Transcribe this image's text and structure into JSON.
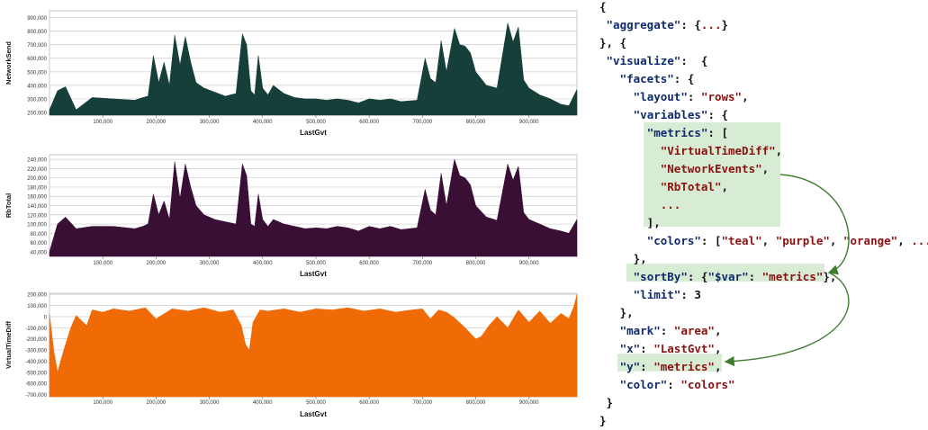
{
  "chart_data": [
    {
      "type": "area",
      "ylabel": "NetworkSend",
      "xlabel": "LastGvt",
      "color": "#163f3a",
      "ylim": [
        180000,
        950000
      ],
      "yticks": [
        "200,000",
        "300,000",
        "400,000",
        "500,000",
        "600,000",
        "700,000",
        "800,000",
        "900,000"
      ],
      "ytick_values": [
        200000,
        300000,
        400000,
        500000,
        600000,
        700000,
        800000,
        900000
      ],
      "xticks": [
        "100,000",
        "200,000",
        "300,000",
        "400,000",
        "500,000",
        "600,000",
        "700,000",
        "800,000",
        "900,000"
      ],
      "xtick_values": [
        100000,
        200000,
        300000,
        400000,
        500000,
        600000,
        700000,
        800000,
        900000
      ],
      "xlim": [
        0,
        990000
      ],
      "x": [
        0,
        15000,
        30000,
        50000,
        80000,
        120000,
        160000,
        175000,
        185000,
        195000,
        205000,
        215000,
        225000,
        235000,
        245000,
        255000,
        265000,
        275000,
        290000,
        310000,
        330000,
        350000,
        362000,
        370000,
        378000,
        385000,
        392000,
        400000,
        410000,
        420000,
        440000,
        460000,
        480000,
        500000,
        520000,
        540000,
        560000,
        580000,
        600000,
        620000,
        640000,
        660000,
        690000,
        705000,
        715000,
        725000,
        735000,
        745000,
        760000,
        770000,
        780000,
        790000,
        800000,
        820000,
        840000,
        860000,
        870000,
        880000,
        890000,
        900000,
        920000,
        940000,
        960000,
        975000,
        990000
      ],
      "y": [
        220000,
        360000,
        390000,
        220000,
        310000,
        300000,
        290000,
        310000,
        320000,
        620000,
        420000,
        570000,
        400000,
        770000,
        550000,
        760000,
        570000,
        420000,
        380000,
        350000,
        320000,
        340000,
        780000,
        700000,
        360000,
        330000,
        620000,
        380000,
        330000,
        400000,
        340000,
        310000,
        300000,
        300000,
        290000,
        300000,
        290000,
        270000,
        300000,
        290000,
        300000,
        280000,
        290000,
        600000,
        450000,
        420000,
        730000,
        500000,
        820000,
        700000,
        690000,
        640000,
        500000,
        400000,
        380000,
        860000,
        720000,
        830000,
        440000,
        380000,
        330000,
        300000,
        260000,
        250000,
        370000
      ]
    },
    {
      "type": "area",
      "ylabel": "RbTotal",
      "xlabel": "LastGvt",
      "color": "#3a0f35",
      "ylim": [
        30000,
        250000
      ],
      "yticks": [
        "40,000",
        "60,000",
        "80,000",
        "100,000",
        "120,000",
        "140,000",
        "160,000",
        "180,000",
        "200,000",
        "220,000",
        "240,000"
      ],
      "ytick_values": [
        40000,
        60000,
        80000,
        100000,
        120000,
        140000,
        160000,
        180000,
        200000,
        220000,
        240000
      ],
      "xticks": [
        "100,000",
        "200,000",
        "300,000",
        "400,000",
        "500,000",
        "600,000",
        "700,000",
        "800,000",
        "900,000"
      ],
      "xtick_values": [
        100000,
        200000,
        300000,
        400000,
        500000,
        600000,
        700000,
        800000,
        900000
      ],
      "xlim": [
        0,
        990000
      ],
      "x": [
        0,
        15000,
        30000,
        50000,
        80000,
        120000,
        160000,
        175000,
        185000,
        195000,
        205000,
        215000,
        225000,
        235000,
        245000,
        255000,
        265000,
        275000,
        290000,
        310000,
        330000,
        350000,
        362000,
        370000,
        378000,
        385000,
        392000,
        400000,
        410000,
        420000,
        440000,
        460000,
        480000,
        500000,
        520000,
        540000,
        560000,
        580000,
        600000,
        620000,
        640000,
        660000,
        690000,
        705000,
        715000,
        725000,
        735000,
        745000,
        760000,
        770000,
        780000,
        790000,
        800000,
        820000,
        840000,
        860000,
        870000,
        880000,
        890000,
        900000,
        920000,
        940000,
        960000,
        975000,
        990000
      ],
      "y": [
        40000,
        100000,
        115000,
        90000,
        95000,
        95000,
        90000,
        95000,
        100000,
        165000,
        120000,
        150000,
        110000,
        235000,
        155000,
        230000,
        180000,
        140000,
        120000,
        110000,
        105000,
        100000,
        230000,
        205000,
        100000,
        95000,
        165000,
        110000,
        95000,
        110000,
        100000,
        95000,
        90000,
        92000,
        90000,
        95000,
        92000,
        85000,
        95000,
        90000,
        95000,
        88000,
        92000,
        175000,
        130000,
        120000,
        210000,
        140000,
        240000,
        205000,
        200000,
        185000,
        140000,
        115000,
        108000,
        230000,
        195000,
        225000,
        125000,
        110000,
        100000,
        90000,
        85000,
        80000,
        110000
      ]
    },
    {
      "type": "area",
      "ylabel": "VirtualTimeDiff",
      "xlabel": "LastGvt",
      "color": "#f06a06",
      "ylim": [
        -720000,
        210000
      ],
      "yticks": [
        "-700,000",
        "-600,000",
        "-500,000",
        "-400,000",
        "-300,000",
        "-200,000",
        "-100,000",
        "0",
        "100,000",
        "200,000"
      ],
      "ytick_values": [
        -700000,
        -600000,
        -500000,
        -400000,
        -300000,
        -200000,
        -100000,
        0,
        100000,
        200000
      ],
      "xticks": [
        "100,000",
        "200,000",
        "300,000",
        "400,000",
        "500,000",
        "600,000",
        "700,000",
        "800,000",
        "900,000"
      ],
      "xtick_values": [
        100000,
        200000,
        300000,
        400000,
        500000,
        600000,
        700000,
        800000,
        900000
      ],
      "xlim": [
        0,
        990000
      ],
      "x": [
        0,
        8000,
        15000,
        22000,
        30000,
        40000,
        50000,
        70000,
        80000,
        100000,
        120000,
        150000,
        180000,
        200000,
        230000,
        260000,
        290000,
        320000,
        345000,
        360000,
        368000,
        375000,
        382000,
        395000,
        410000,
        440000,
        470000,
        500000,
        530000,
        560000,
        590000,
        620000,
        650000,
        680000,
        700000,
        715000,
        730000,
        745000,
        760000,
        780000,
        800000,
        810000,
        825000,
        840000,
        860000,
        880000,
        900000,
        920000,
        940000,
        960000,
        975000,
        985000,
        990000
      ],
      "y": [
        20000,
        -300000,
        -500000,
        -380000,
        -250000,
        -100000,
        10000,
        -80000,
        60000,
        40000,
        70000,
        50000,
        80000,
        -20000,
        70000,
        50000,
        80000,
        40000,
        60000,
        -80000,
        -250000,
        -300000,
        -50000,
        60000,
        50000,
        70000,
        40000,
        70000,
        60000,
        80000,
        50000,
        70000,
        40000,
        60000,
        70000,
        -20000,
        60000,
        40000,
        -10000,
        -100000,
        -200000,
        -180000,
        -80000,
        0,
        -100000,
        60000,
        -50000,
        50000,
        -60000,
        30000,
        -20000,
        100000,
        200000
      ]
    }
  ],
  "code": {
    "lines": [
      [
        [
          "n",
          "{"
        ]
      ],
      [
        [
          "n",
          " "
        ],
        [
          "k",
          "\"aggregate\""
        ],
        [
          "n",
          ": {"
        ],
        [
          "s",
          "..."
        ],
        [
          "n",
          "}"
        ]
      ],
      [
        [
          "n",
          "}, {"
        ]
      ],
      [
        [
          "n",
          " "
        ],
        [
          "k",
          "\"visualize\""
        ],
        [
          "n",
          ":  {"
        ]
      ],
      [
        [
          "n",
          "   "
        ],
        [
          "k",
          "\"facets\""
        ],
        [
          "n",
          ": {"
        ]
      ],
      [
        [
          "n",
          "     "
        ],
        [
          "k",
          "\"layout\""
        ],
        [
          "n",
          ": "
        ],
        [
          "s",
          "\"rows\""
        ],
        [
          "n",
          ","
        ]
      ],
      [
        [
          "n",
          "     "
        ],
        [
          "k",
          "\"variables\""
        ],
        [
          "n",
          ": {"
        ]
      ],
      [
        [
          "n",
          "       "
        ],
        [
          "k",
          "\"metrics\""
        ],
        [
          "n",
          ": ["
        ]
      ],
      [
        [
          "n",
          "         "
        ],
        [
          "s",
          "\"VirtualTimeDiff\""
        ],
        [
          "n",
          ","
        ]
      ],
      [
        [
          "n",
          "         "
        ],
        [
          "s",
          "\"NetworkEvents\""
        ],
        [
          "n",
          ","
        ]
      ],
      [
        [
          "n",
          "         "
        ],
        [
          "s",
          "\"RbTotal\""
        ],
        [
          "n",
          ","
        ]
      ],
      [
        [
          "n",
          "         "
        ],
        [
          "s",
          "..."
        ]
      ],
      [
        [
          "n",
          "       ],"
        ]
      ],
      [
        [
          "n",
          "       "
        ],
        [
          "k",
          "\"colors\""
        ],
        [
          "n",
          ": ["
        ],
        [
          "s",
          "\"teal\""
        ],
        [
          "n",
          ", "
        ],
        [
          "s",
          "\"purple\""
        ],
        [
          "n",
          ", "
        ],
        [
          "s",
          "\"orange\""
        ],
        [
          "n",
          ", "
        ],
        [
          "s",
          "..."
        ],
        [
          "n",
          "]"
        ]
      ],
      [
        [
          "n",
          "     },"
        ]
      ],
      [
        [
          "n",
          "     "
        ],
        [
          "k",
          "\"sortBy\""
        ],
        [
          "n",
          ": {"
        ],
        [
          "k",
          "\"$var\""
        ],
        [
          "n",
          ": "
        ],
        [
          "s",
          "\"metrics\""
        ],
        [
          "n",
          "},"
        ]
      ],
      [
        [
          "n",
          "     "
        ],
        [
          "k",
          "\"limit\""
        ],
        [
          "n",
          ": 3"
        ]
      ],
      [
        [
          "n",
          "   },"
        ]
      ],
      [
        [
          "n",
          "   "
        ],
        [
          "k",
          "\"mark\""
        ],
        [
          "n",
          ": "
        ],
        [
          "s",
          "\"area\""
        ],
        [
          "n",
          ","
        ]
      ],
      [
        [
          "n",
          "   "
        ],
        [
          "k",
          "\"x\""
        ],
        [
          "n",
          ": "
        ],
        [
          "s",
          "\"LastGvt\""
        ],
        [
          "n",
          ","
        ]
      ],
      [
        [
          "n",
          "   "
        ],
        [
          "k",
          "\"y\""
        ],
        [
          "n",
          ": "
        ],
        [
          "s",
          "\"metrics\""
        ],
        [
          "n",
          ","
        ]
      ],
      [
        [
          "n",
          "   "
        ],
        [
          "k",
          "\"color\""
        ],
        [
          "n",
          ": "
        ],
        [
          "s",
          "\"colors\""
        ]
      ],
      [
        [
          "n",
          " }"
        ]
      ],
      [
        [
          "n",
          "}"
        ]
      ]
    ]
  }
}
